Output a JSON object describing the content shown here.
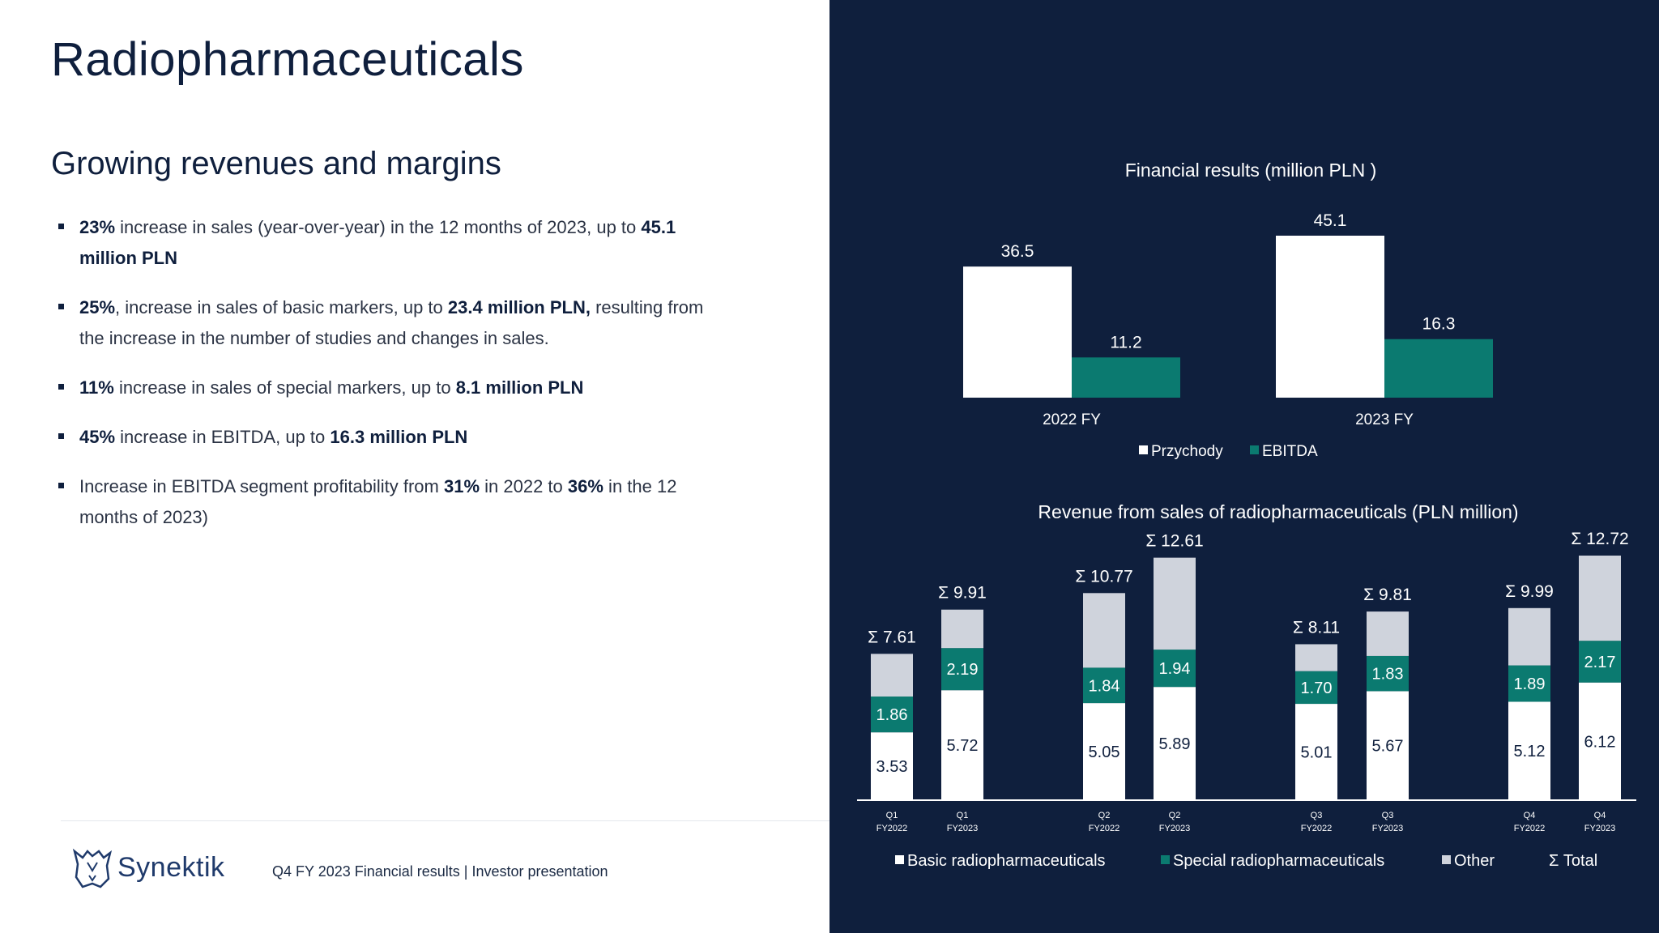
{
  "slide": {
    "title": "Radiopharmaceuticals",
    "subtitle": "Growing revenues and margins",
    "bullets": [
      [
        {
          "t": "23%",
          "b": true
        },
        {
          "t": " increase in sales (year-over-year) in the 12 months of 2023, up to "
        },
        {
          "t": "45.1 million PLN",
          "b": true
        }
      ],
      [
        {
          "t": "25%",
          "b": true
        },
        {
          "t": ", increase in sales of basic markers, up to  "
        },
        {
          "t": "23.4 million PLN,",
          "b": true
        },
        {
          "t": " resulting from the increase in the number of studies and changes in sales."
        }
      ],
      [
        {
          "t": "11%",
          "b": true
        },
        {
          "t": " increase in sales of special markers, up to "
        },
        {
          "t": "8.1 million PLN",
          "b": true
        }
      ],
      [
        {
          "t": "45%",
          "b": true
        },
        {
          "t": " increase in  EBITDA, up to "
        },
        {
          "t": "16.3 million PLN",
          "b": true
        }
      ],
      [
        {
          "t": "Increase in EBITDA segment profitability from "
        },
        {
          "t": "31%",
          "b": true
        },
        {
          "t": " in 2022 to "
        },
        {
          "t": "36%",
          "b": true
        },
        {
          "t": " in the 12 months of 2023)"
        }
      ]
    ],
    "footer": "Q4 FY 2023 Financial results |  Investor presentation",
    "logo_text": "Synektik"
  },
  "colors": {
    "navy": "#0f1f3d",
    "white": "#ffffff",
    "teal": "#0b7a70",
    "gray": "#cfd3dc"
  },
  "chart_data": [
    {
      "type": "bar",
      "title": "Financial results (million PLN )",
      "categories": [
        "2022 FY",
        "2023 FY"
      ],
      "series": [
        {
          "name": "Przychody",
          "values": [
            36.5,
            45.1
          ],
          "color": "#ffffff"
        },
        {
          "name": "EBITDA",
          "values": [
            11.2,
            16.3
          ],
          "color": "#0b7a70"
        }
      ],
      "ylim": [
        0,
        45.1
      ],
      "legend": "bottom"
    },
    {
      "type": "bar",
      "stacked": true,
      "title": "Revenue from sales of radiopharmaceuticals (PLN million)",
      "categories": [
        [
          "Q1",
          "FY2022"
        ],
        [
          "Q1",
          "FY2023"
        ],
        [
          "Q2",
          "FY2022"
        ],
        [
          "Q2",
          "FY2023"
        ],
        [
          "Q3",
          "FY2022"
        ],
        [
          "Q3",
          "FY2023"
        ],
        [
          "Q4",
          "FY2022"
        ],
        [
          "Q4",
          "FY2023"
        ]
      ],
      "series": [
        {
          "name": "Basic radiopharmaceuticals",
          "values": [
            3.53,
            5.72,
            5.05,
            5.89,
            5.01,
            5.67,
            5.12,
            6.12
          ],
          "color": "#ffffff"
        },
        {
          "name": "Special radiopharmaceuticals",
          "values": [
            1.86,
            2.19,
            1.84,
            1.94,
            1.7,
            1.83,
            1.89,
            2.17
          ],
          "color": "#0b7a70"
        },
        {
          "name": "Other",
          "values": [
            2.22,
            2.0,
            3.88,
            4.78,
            1.4,
            2.31,
            2.98,
            4.43
          ],
          "color": "#cfd3dc"
        }
      ],
      "totals": [
        "7.61",
        "9.91",
        "10.77",
        "12.61",
        "8.11",
        "9.81",
        "9.99",
        "12.72"
      ],
      "total_prefix": "Σ",
      "total_legend": "Σ Total",
      "ylim": [
        0,
        12.72
      ],
      "legend": "bottom"
    }
  ]
}
